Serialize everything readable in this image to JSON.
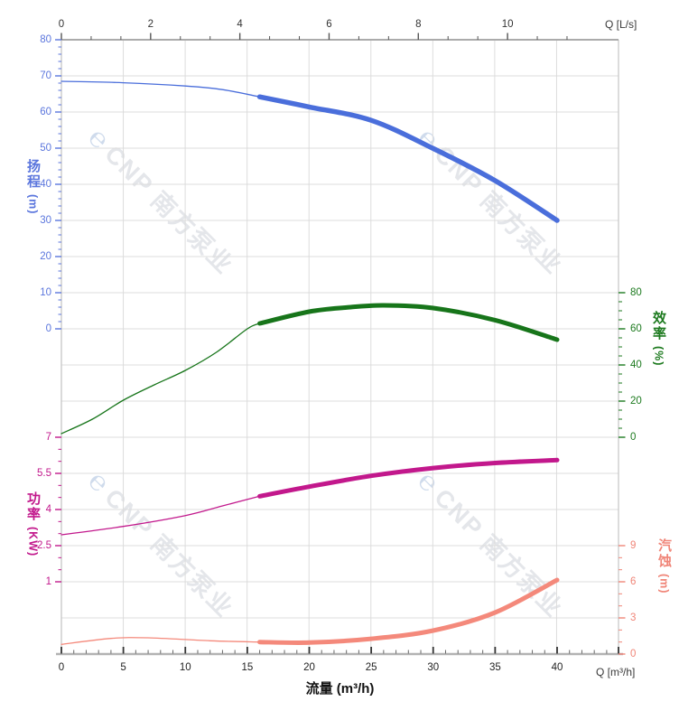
{
  "watermark": {
    "logo": "℮",
    "text": "CNP 南方泵业"
  },
  "axes": {
    "top": {
      "label": "Q [L/s]",
      "ticks": [
        "0",
        "2",
        "4",
        "6",
        "8",
        "10"
      ]
    },
    "bottom": {
      "label": "Q [m³/h]",
      "title": "流量 (m³/h)",
      "ticks": [
        "0",
        "5",
        "10",
        "15",
        "20",
        "25",
        "30",
        "35",
        "40"
      ]
    },
    "head": {
      "title": "扬程",
      "unit": "(m)",
      "color": "#5b76dd",
      "ticks": [
        "80",
        "70",
        "60",
        "50",
        "40",
        "30",
        "20",
        "10",
        "0"
      ]
    },
    "efficiency": {
      "title": "效率",
      "unit": "(%)",
      "color": "#1d7a1f",
      "ticks": [
        "80",
        "60",
        "40",
        "20",
        "0"
      ]
    },
    "power": {
      "title": "功率",
      "unit": "(KW)",
      "color": "#c2188c",
      "ticks": [
        "7",
        "5.5",
        "4",
        "2.5",
        "1"
      ]
    },
    "npsh": {
      "title": "汽蚀",
      "unit": "(m)",
      "color": "#f08578",
      "ticks": [
        "9",
        "6",
        "3",
        "0"
      ]
    }
  },
  "chart_data": {
    "type": "line",
    "title": "",
    "xlabel_bottom": "流量 (m³/h)",
    "xlabel_top": "Q [L/s]",
    "x_unit_bottom": "m³/h",
    "x_unit_top": "L/s",
    "x_range_m3h": [
      0,
      45
    ],
    "x_ticks_m3h": [
      0,
      5,
      10,
      15,
      20,
      25,
      30,
      35,
      40
    ],
    "x_ticks_top_ls": [
      0,
      2,
      4,
      6,
      8,
      10
    ],
    "grid": true,
    "duty_split_q_m3h": 16,
    "series": [
      {
        "id": "head",
        "name": "扬程 H-Q",
        "unit": "m",
        "color": "#4a6edb",
        "axis": "head",
        "axis_range": [
          0,
          80
        ],
        "points": [
          [
            0,
            68.5
          ],
          [
            5,
            68.1
          ],
          [
            10,
            67.2
          ],
          [
            13,
            66.2
          ],
          [
            16,
            64.2
          ],
          [
            20,
            61.4
          ],
          [
            25,
            57.7
          ],
          [
            30,
            49.9
          ],
          [
            35,
            41.0
          ],
          [
            40,
            30.0
          ]
        ]
      },
      {
        "id": "efficiency",
        "name": "效率",
        "unit": "%",
        "color": "#17751a",
        "axis": "efficiency",
        "axis_range": [
          0,
          80
        ],
        "points": [
          [
            0,
            2
          ],
          [
            2.5,
            10
          ],
          [
            5,
            20.5
          ],
          [
            7.5,
            29
          ],
          [
            10,
            37
          ],
          [
            12.5,
            47
          ],
          [
            15,
            60
          ],
          [
            16,
            63
          ],
          [
            20,
            69.5
          ],
          [
            23,
            71.8
          ],
          [
            26,
            73
          ],
          [
            30,
            71.5
          ],
          [
            35,
            64.8
          ],
          [
            40,
            54
          ]
        ]
      },
      {
        "id": "power",
        "name": "功率",
        "unit": "KW",
        "color": "#c2188c",
        "axis": "power",
        "axis_range": [
          1,
          7
        ],
        "points": [
          [
            0,
            2.95
          ],
          [
            5,
            3.3
          ],
          [
            10,
            3.75
          ],
          [
            13,
            4.15
          ],
          [
            16,
            4.55
          ],
          [
            20,
            4.95
          ],
          [
            25,
            5.4
          ],
          [
            30,
            5.72
          ],
          [
            35,
            5.93
          ],
          [
            40,
            6.05
          ]
        ]
      },
      {
        "id": "npsh",
        "name": "汽蚀 NPSH",
        "unit": "m",
        "color": "#f4897b",
        "axis": "npsh",
        "axis_range": [
          0,
          9
        ],
        "points": [
          [
            0,
            0.8
          ],
          [
            4,
            1.3
          ],
          [
            7,
            1.35
          ],
          [
            12,
            1.1
          ],
          [
            16,
            1.0
          ],
          [
            20,
            0.95
          ],
          [
            25,
            1.27
          ],
          [
            30,
            1.95
          ],
          [
            35,
            3.45
          ],
          [
            40,
            6.15
          ]
        ]
      }
    ]
  }
}
